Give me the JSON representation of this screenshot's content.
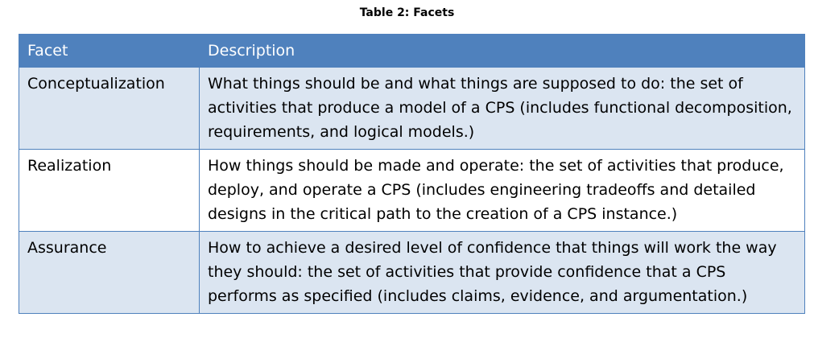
{
  "caption": "Table 2: Facets",
  "table": {
    "headers": [
      "Facet",
      "Description"
    ],
    "rows": [
      {
        "facet": "Conceptualization",
        "description": "What things should be and what things are supposed to do: the set of activities that produce a model of a CPS (includes functional decomposition, requirements, and logical models.)"
      },
      {
        "facet": "Realization",
        "description": "How things should be made and operate: the set of activities that produce, deploy, and operate a CPS (includes engineering tradeoffs and detailed designs in the critical path to the creation of a CPS instance.)"
      },
      {
        "facet": "Assurance",
        "description": "How to achieve a desired level of confidence that things will work the way they should: the set of activities that provide confidence that a CPS performs as specified (includes claims, evidence, and argumentation.)"
      }
    ]
  },
  "colors": {
    "header_bg": "#4f81bd",
    "header_text": "#ffffff",
    "shaded_row_bg": "#dbe5f1",
    "border": "#4f81bd"
  }
}
